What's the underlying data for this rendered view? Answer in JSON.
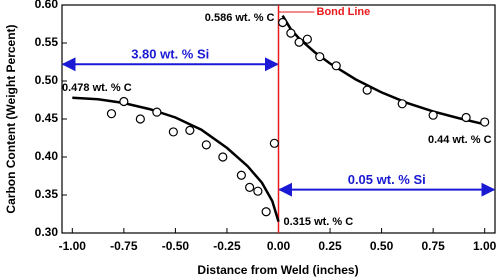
{
  "chart_data": {
    "type": "scatter",
    "x_label": "Distance from Weld (inches)",
    "y_label": "Carbon Content (Weight Percent)",
    "xlim": [
      -1.05,
      1.05
    ],
    "ylim": [
      0.3,
      0.6
    ],
    "xticks": [
      {
        "value": -1,
        "label": "-1.00"
      },
      {
        "value": -0.75,
        "label": "-0.75"
      },
      {
        "value": -0.5,
        "label": "-0.50"
      },
      {
        "value": -0.25,
        "label": "-0.25"
      },
      {
        "value": 0,
        "label": "0.00"
      },
      {
        "value": 0.25,
        "label": "0.25"
      },
      {
        "value": 0.5,
        "label": "0.50"
      },
      {
        "value": 0.75,
        "label": "0.75"
      },
      {
        "value": 1,
        "label": "1.00"
      }
    ],
    "yticks": [
      {
        "value": 0.3,
        "label": "0.30"
      },
      {
        "value": 0.35,
        "label": "0.35"
      },
      {
        "value": 0.4,
        "label": "0.40"
      },
      {
        "value": 0.45,
        "label": "0.45"
      },
      {
        "value": 0.5,
        "label": "0.50"
      },
      {
        "value": 0.55,
        "label": "0.55"
      },
      {
        "value": 0.6,
        "label": "0.60"
      }
    ],
    "points": {
      "color": "#000000",
      "x": [
        -0.81,
        -0.75,
        -0.67,
        -0.59,
        -0.51,
        -0.43,
        -0.35,
        -0.27,
        -0.18,
        -0.14,
        -0.1,
        -0.06,
        -0.02,
        0.02,
        0.06,
        0.1,
        0.14,
        0.2,
        0.28,
        0.43,
        0.6,
        0.75,
        0.91,
        1.0
      ],
      "values": [
        0.457,
        0.473,
        0.45,
        0.459,
        0.433,
        0.435,
        0.416,
        0.4,
        0.376,
        0.36,
        0.355,
        0.328,
        0.418,
        0.577,
        0.563,
        0.551,
        0.555,
        0.532,
        0.52,
        0.488,
        0.47,
        0.455,
        0.452,
        0.446
      ]
    },
    "fits": [
      {
        "color": "#000000",
        "x": [
          -1.0,
          -0.875,
          -0.75,
          -0.625,
          -0.5,
          -0.375,
          -0.25,
          -0.15,
          -0.08,
          -0.03,
          0.0
        ],
        "values": [
          0.478,
          0.476,
          0.471,
          0.463,
          0.452,
          0.436,
          0.412,
          0.388,
          0.366,
          0.342,
          0.315
        ]
      },
      {
        "color": "#000000",
        "x": [
          0.02,
          0.06,
          0.1,
          0.175,
          0.25,
          0.375,
          0.5,
          0.625,
          0.75,
          0.875,
          1.0
        ],
        "values": [
          0.586,
          0.568,
          0.556,
          0.538,
          0.523,
          0.502,
          0.485,
          0.471,
          0.46,
          0.451,
          0.443
        ]
      }
    ],
    "bond_line": {
      "label": "Bond Line",
      "x": 0,
      "color": "#e8191c"
    },
    "arrows": [
      {
        "label": "3.80 wt. % Si",
        "x": [
          -1.05,
          0
        ],
        "y": 0.522,
        "color": "#1a1ad4"
      },
      {
        "label": "0.05 wt. % Si",
        "x": [
          0,
          1.05
        ],
        "y": 0.357,
        "color": "#1a1ad4"
      }
    ],
    "annotations": [
      "0.586 wt. % C",
      "0.478 wt. % C",
      "0.315 wt. % C",
      "0.44 wt. % C"
    ]
  }
}
